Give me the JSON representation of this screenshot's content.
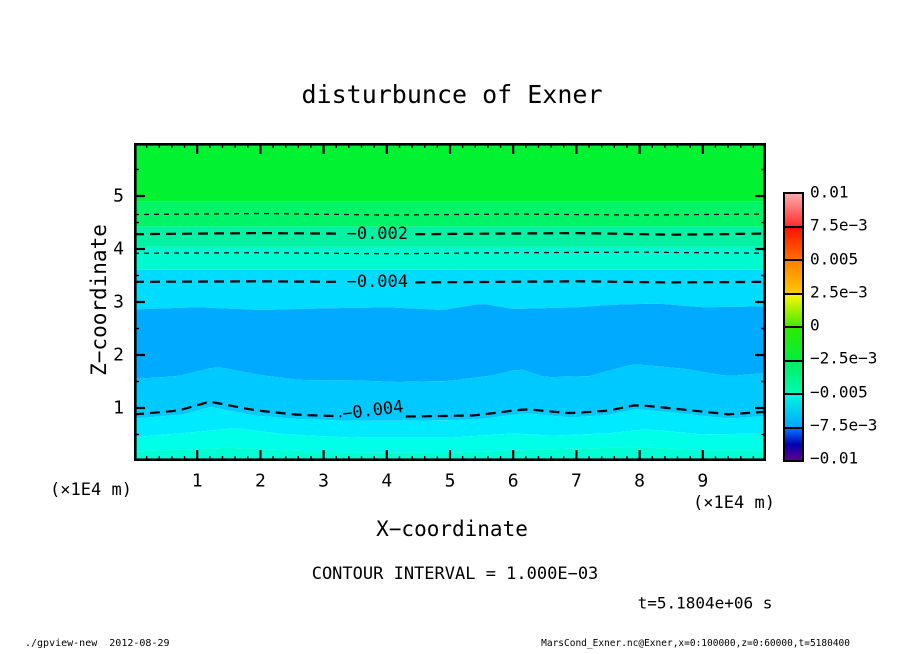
{
  "title": "disturbunce of Exner",
  "axes": {
    "x_label": "X−coordinate",
    "y_label": "Z−coordinate",
    "x_unit": "(×1E4 m)",
    "y_unit": "(×1E4 m)",
    "x_ticks": [
      1,
      2,
      3,
      4,
      5,
      6,
      7,
      8,
      9
    ],
    "y_ticks": [
      1,
      2,
      3,
      4,
      5
    ]
  },
  "contour_interval_text": "CONTOUR INTERVAL = 1.000E−03",
  "time_label": "t=5.1804e+06 s",
  "footer": {
    "left": "./gpview-new  2012-08-29",
    "right": "MarsCond_Exner.nc@Exner,x=0:100000,z=0:60000,t=5180400"
  },
  "colorbar": {
    "labels": [
      "0.01",
      "7.5e−3",
      "0.005",
      "2.5e−3",
      "0",
      "−2.5e−3",
      "−0.005",
      "−7.5e−3",
      "−0.01"
    ],
    "segments": [
      {
        "stops": [
          "#ffaaaa",
          "#ff2e2e"
        ]
      },
      {
        "stops": [
          "#ff1200",
          "#ff6c00"
        ]
      },
      {
        "stops": [
          "#ff8000",
          "#fdc800"
        ]
      },
      {
        "stops": [
          "#fdf500",
          "#45ec00"
        ]
      },
      {
        "stops": [
          "#2fec00",
          "#00ee3a"
        ]
      },
      {
        "stops": [
          "#00f05c",
          "#00fab2"
        ]
      },
      {
        "stops": [
          "#00f5e0",
          "#00a6ff"
        ]
      },
      {
        "stops": [
          "#0072ff",
          "#0000b0",
          "#61008c"
        ]
      }
    ]
  },
  "chart_data": {
    "type": "heatmap",
    "subtype": "filled-contour",
    "title": "disturbunce of Exner",
    "xlabel": "X−coordinate",
    "ylabel": "Z−coordinate",
    "x_unit_scale": "×1E4 m",
    "y_unit_scale": "×1E4 m",
    "xlim": [
      0,
      10
    ],
    "ylim": [
      0,
      6
    ],
    "x_tick_values": [
      1,
      2,
      3,
      4,
      5,
      6,
      7,
      8,
      9
    ],
    "y_tick_values": [
      1,
      2,
      3,
      4,
      5
    ],
    "x_minor_step": 0.2,
    "y_minor_step": 0.5,
    "value_range": [
      -0.01,
      0.01
    ],
    "contour_interval": 0.001,
    "time_seconds": 5180400,
    "value_profile_estimate": [
      {
        "z": 6.0,
        "v": -0.0005
      },
      {
        "z": 4.9,
        "v": -0.001
      },
      {
        "z": 4.3,
        "v": -0.002
      },
      {
        "z": 3.9,
        "v": -0.003
      },
      {
        "z": 3.4,
        "v": -0.004
      },
      {
        "z": 2.2,
        "v": -0.006
      },
      {
        "z": 1.5,
        "v": -0.005
      },
      {
        "z": 0.9,
        "v": -0.004
      },
      {
        "z": 0.0,
        "v": -0.002
      }
    ],
    "bands": [
      "#00f230",
      "#00f468",
      "#00f2a2",
      "#00fad0",
      "#00dcff",
      "#00aaff",
      "#00c9ff",
      "#00eaff",
      "#00ffe8",
      "#00ffd2"
    ],
    "band_boundaries": [
      {
        "z": 4.89
      },
      {
        "z": 4.42
      },
      {
        "z": 4.04
      },
      {
        "z": 3.61
      },
      {
        "pts": [
          [
            0,
            2.86
          ],
          [
            1,
            2.9
          ],
          [
            2,
            2.85
          ],
          [
            3,
            2.88
          ],
          [
            4,
            2.9
          ],
          [
            4.9,
            2.85
          ],
          [
            5.5,
            2.97
          ],
          [
            6,
            2.87
          ],
          [
            7,
            2.9
          ],
          [
            7.6,
            2.95
          ],
          [
            8.3,
            2.97
          ],
          [
            9,
            2.9
          ],
          [
            10,
            2.92
          ]
        ]
      },
      {
        "pts": [
          [
            0,
            1.55
          ],
          [
            0.7,
            1.6
          ],
          [
            1.3,
            1.78
          ],
          [
            2,
            1.62
          ],
          [
            2.6,
            1.53
          ],
          [
            3.5,
            1.52
          ],
          [
            4.2,
            1.49
          ],
          [
            5,
            1.51
          ],
          [
            5.7,
            1.62
          ],
          [
            6.1,
            1.74
          ],
          [
            6.5,
            1.58
          ],
          [
            7.2,
            1.6
          ],
          [
            7.9,
            1.83
          ],
          [
            8.7,
            1.74
          ],
          [
            9.4,
            1.6
          ],
          [
            10,
            1.66
          ]
        ]
      },
      {
        "pts": [
          [
            0,
            0.8
          ],
          [
            0.8,
            0.88
          ],
          [
            1.2,
            1.02
          ],
          [
            1.9,
            0.86
          ],
          [
            2.6,
            0.79
          ],
          [
            3.4,
            0.76
          ],
          [
            4.4,
            0.76
          ],
          [
            5.4,
            0.78
          ],
          [
            6.2,
            0.9
          ],
          [
            6.9,
            0.82
          ],
          [
            7.5,
            0.87
          ],
          [
            7.95,
            0.98
          ],
          [
            8.7,
            0.89
          ],
          [
            9.4,
            0.8
          ],
          [
            10,
            0.85
          ]
        ]
      },
      {
        "pts": [
          [
            0,
            0.45
          ],
          [
            1,
            0.55
          ],
          [
            1.6,
            0.62
          ],
          [
            2.4,
            0.5
          ],
          [
            3.5,
            0.44
          ],
          [
            5,
            0.44
          ],
          [
            6,
            0.52
          ],
          [
            6.6,
            0.48
          ],
          [
            7.5,
            0.52
          ],
          [
            8.1,
            0.6
          ],
          [
            9,
            0.5
          ],
          [
            10,
            0.52
          ]
        ]
      },
      {
        "pts": [
          [
            0,
            0.18
          ],
          [
            1.5,
            0.25
          ],
          [
            3,
            0.17
          ],
          [
            5,
            0.16
          ],
          [
            6.5,
            0.22
          ],
          [
            8,
            0.26
          ],
          [
            9,
            0.2
          ],
          [
            10,
            0.2
          ]
        ]
      }
    ],
    "contour_lines": [
      {
        "value": -0.001,
        "style": "minor",
        "pts": [
          [
            0,
            4.65
          ],
          [
            2,
            4.67
          ],
          [
            4,
            4.64
          ],
          [
            6,
            4.66
          ],
          [
            8,
            4.64
          ],
          [
            10,
            4.66
          ]
        ]
      },
      {
        "value": -0.002,
        "style": "major",
        "label": "−0.002",
        "gap": [
          3.25,
          4.45
        ],
        "pts": [
          [
            0,
            4.28
          ],
          [
            2,
            4.3
          ],
          [
            4.5,
            4.28
          ],
          [
            7,
            4.3
          ],
          [
            8.5,
            4.27
          ],
          [
            10,
            4.29
          ]
        ]
      },
      {
        "value": -0.003,
        "style": "minor",
        "pts": [
          [
            0,
            3.92
          ],
          [
            2,
            3.93
          ],
          [
            4,
            3.91
          ],
          [
            6,
            3.93
          ],
          [
            8,
            3.94
          ],
          [
            10,
            3.92
          ]
        ]
      },
      {
        "value": -0.004,
        "style": "major",
        "label": "−0.004",
        "gap": [
          3.25,
          4.45
        ],
        "pts": [
          [
            0,
            3.38
          ],
          [
            2,
            3.39
          ],
          [
            4.5,
            3.37
          ],
          [
            7,
            3.39
          ],
          [
            8.5,
            3.37
          ],
          [
            10,
            3.38
          ]
        ]
      },
      {
        "value": -0.004,
        "style": "major",
        "label": "−0.004",
        "gap": [
          3.28,
          4.3
        ],
        "label_rot": -7,
        "label_pos": [
          3.78,
          0.95
        ],
        "pts": [
          [
            0,
            0.88
          ],
          [
            0.7,
            0.95
          ],
          [
            1.2,
            1.12
          ],
          [
            1.9,
            0.96
          ],
          [
            2.6,
            0.87
          ],
          [
            3.4,
            0.84
          ],
          [
            4.4,
            0.84
          ],
          [
            5.4,
            0.86
          ],
          [
            6.2,
            0.98
          ],
          [
            6.9,
            0.9
          ],
          [
            7.5,
            0.95
          ],
          [
            7.95,
            1.06
          ],
          [
            8.7,
            0.97
          ],
          [
            9.4,
            0.88
          ],
          [
            10,
            0.93
          ]
        ]
      }
    ]
  }
}
